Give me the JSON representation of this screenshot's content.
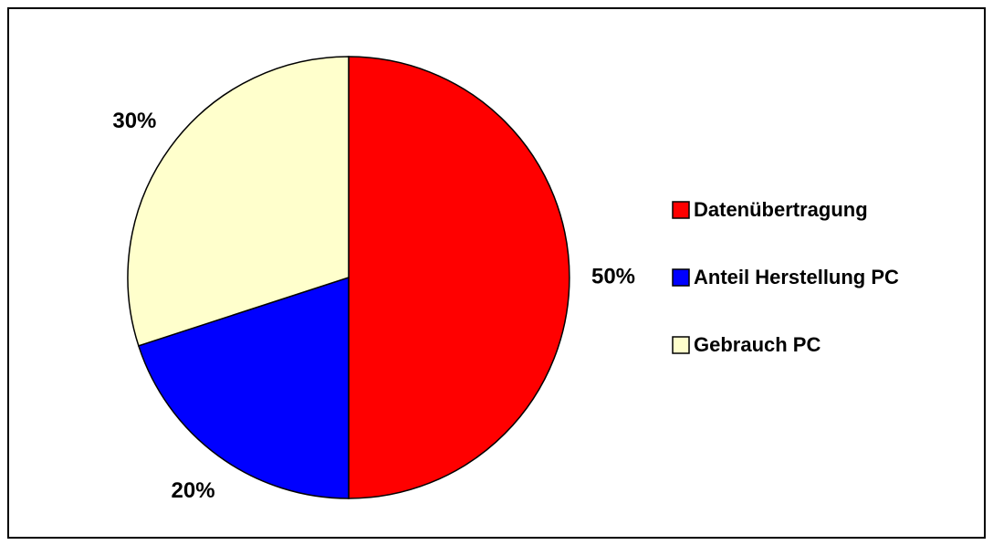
{
  "chart_data": {
    "type": "pie",
    "categories": [
      "Datenübertragung",
      "Anteil Herstellung PC",
      "Gebrauch PC"
    ],
    "values": [
      50,
      20,
      30
    ],
    "value_labels": [
      "50%",
      "20%",
      "30%"
    ],
    "colors": [
      "#ff0000",
      "#0000ff",
      "#ffffcc"
    ],
    "legend": "right"
  }
}
